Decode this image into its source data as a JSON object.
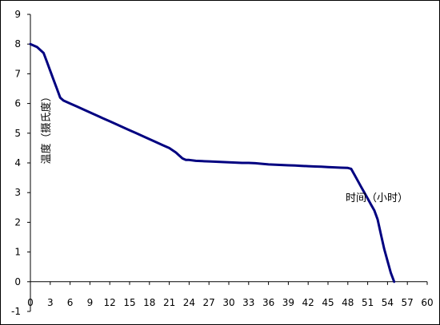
{
  "chart_data": {
    "type": "line",
    "title": "",
    "xlabel": "时间（小时）",
    "ylabel": "温度（摄氏度）",
    "xlim": [
      0,
      60
    ],
    "ylim": [
      -1,
      9
    ],
    "x_ticks": [
      0,
      3,
      6,
      9,
      12,
      15,
      18,
      21,
      24,
      27,
      30,
      33,
      36,
      39,
      42,
      45,
      48,
      51,
      54,
      57,
      60
    ],
    "y_ticks": [
      -1,
      0,
      1,
      2,
      3,
      4,
      5,
      6,
      7,
      8,
      9
    ],
    "grid": false,
    "legend": "none",
    "line_color": "#000080",
    "series": [
      {
        "x": [
          0,
          1,
          2,
          2.5,
          3,
          3.5,
          4,
          4.5,
          5,
          6,
          7,
          8,
          9,
          10,
          11,
          12,
          13,
          14,
          15,
          16,
          17,
          18,
          19,
          20,
          21,
          22,
          22.5,
          23,
          23.5,
          24,
          25,
          26,
          27,
          28,
          29,
          30,
          31,
          32,
          33,
          34,
          35,
          36,
          37,
          38,
          39,
          40,
          41,
          42,
          43,
          44,
          45,
          46,
          47,
          48,
          48.5,
          49,
          49.5,
          50,
          50.5,
          51,
          51.5,
          52,
          52.5,
          53,
          53.5,
          54,
          54.5,
          55
        ],
        "y": [
          8.0,
          7.9,
          7.7,
          7.4,
          7.1,
          6.8,
          6.5,
          6.2,
          6.1,
          6.0,
          5.9,
          5.8,
          5.7,
          5.6,
          5.5,
          5.4,
          5.3,
          5.2,
          5.1,
          5.0,
          4.9,
          4.8,
          4.7,
          4.6,
          4.5,
          4.35,
          4.25,
          4.15,
          4.1,
          4.1,
          4.07,
          4.06,
          4.05,
          4.04,
          4.03,
          4.02,
          4.01,
          4.0,
          4.0,
          3.99,
          3.97,
          3.95,
          3.94,
          3.93,
          3.92,
          3.91,
          3.9,
          3.89,
          3.88,
          3.87,
          3.86,
          3.85,
          3.84,
          3.83,
          3.8,
          3.6,
          3.4,
          3.2,
          3.0,
          2.8,
          2.6,
          2.4,
          2.1,
          1.6,
          1.1,
          0.7,
          0.3,
          0.0
        ]
      }
    ]
  }
}
